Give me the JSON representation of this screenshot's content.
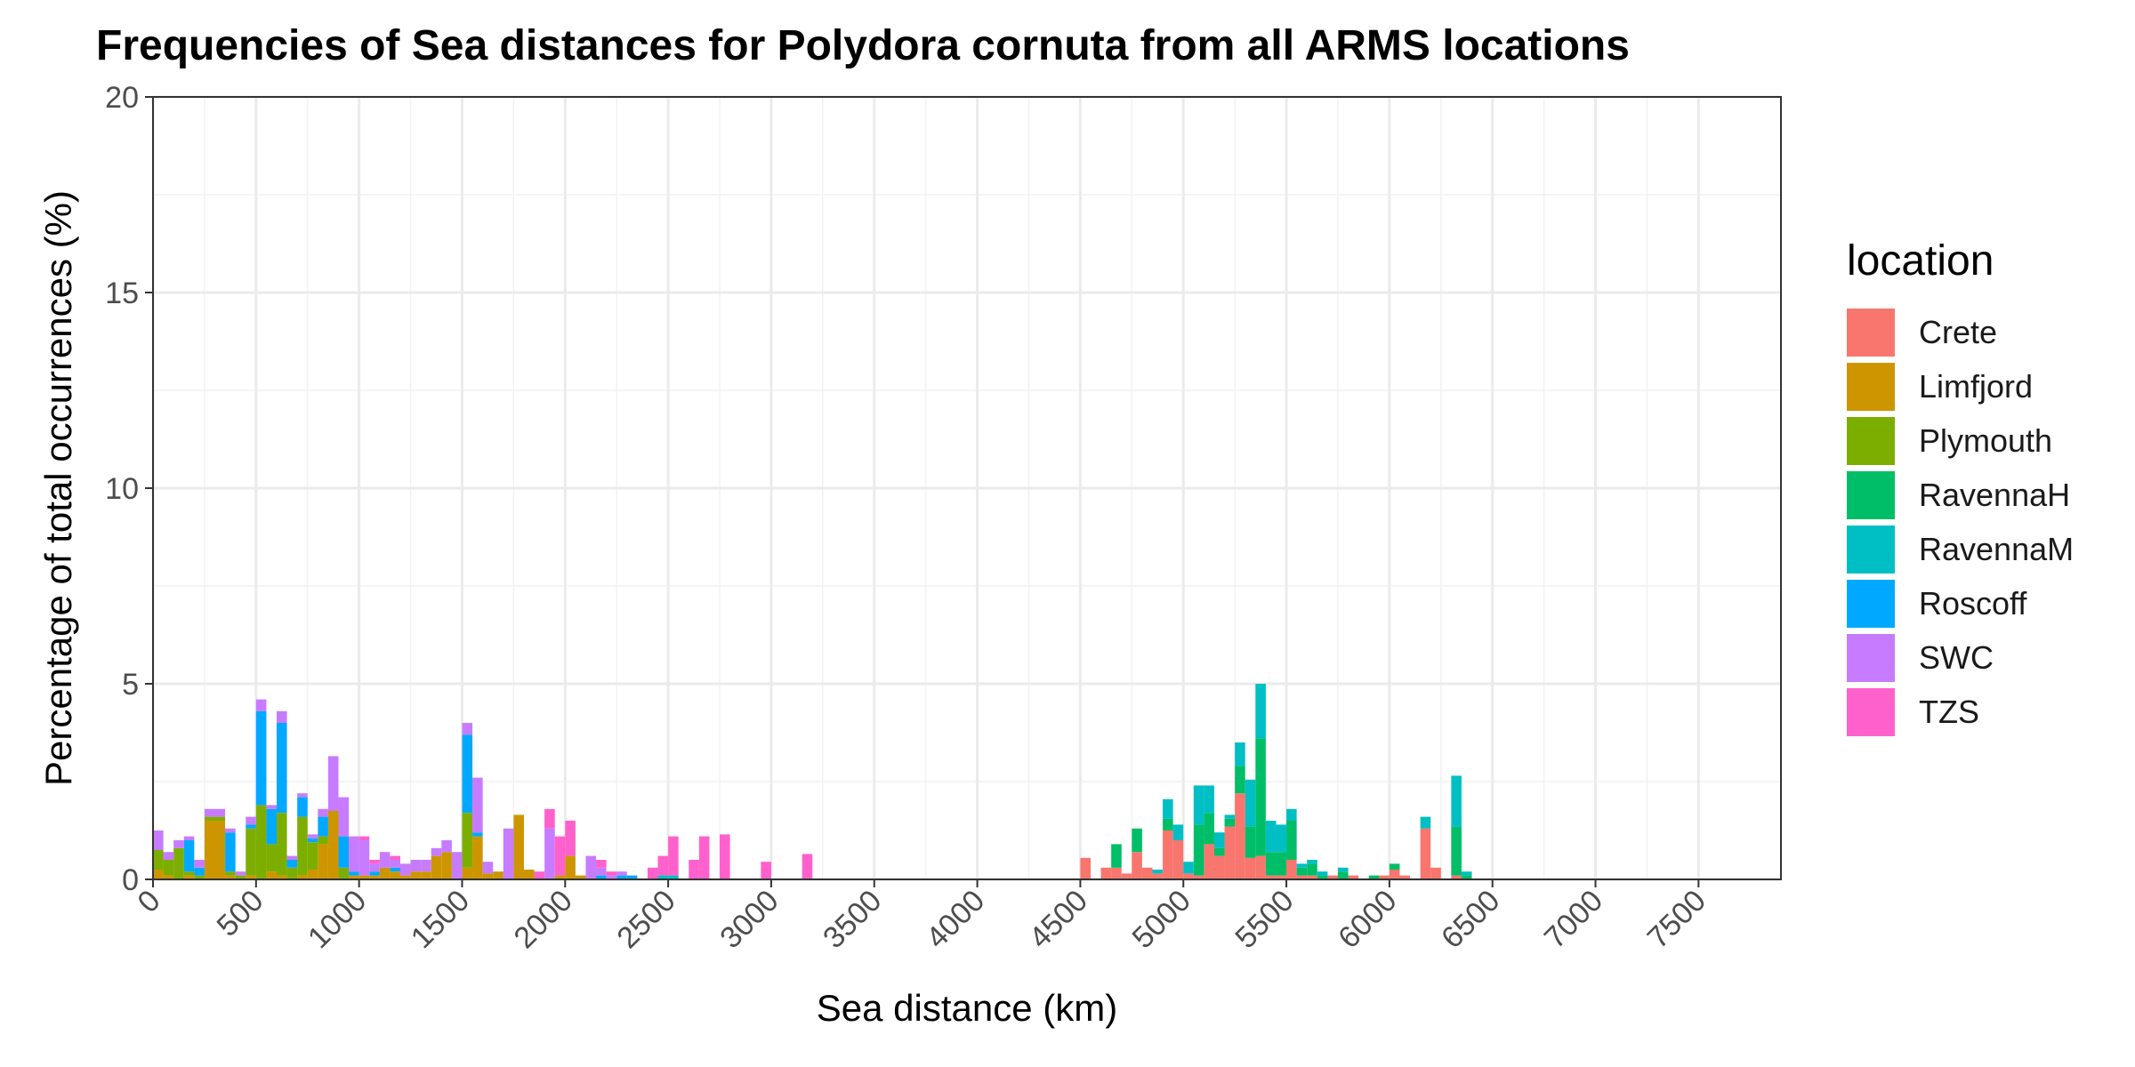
{
  "chart_data": {
    "type": "bar",
    "stacked": true,
    "title": "Frequencies of Sea distances for Polydora cornuta from all ARMS locations",
    "xlabel": "Sea distance (km)",
    "ylabel": "Percentage of total occurrences (%)",
    "xlim": [
      0,
      7900
    ],
    "ylim": [
      0,
      20
    ],
    "x_ticks": [
      0,
      500,
      1000,
      1500,
      2000,
      2500,
      3000,
      3500,
      4000,
      4500,
      5000,
      5500,
      6000,
      6500,
      7000,
      7500
    ],
    "x_tick_labels": [
      "0",
      "500",
      "1000",
      "1500",
      "2000",
      "2500",
      "3000",
      "3500",
      "4000",
      "4500",
      "5000",
      "5500",
      "6000",
      "6500",
      "7000",
      "7500"
    ],
    "y_ticks": [
      0,
      5,
      10,
      15,
      20
    ],
    "y_tick_labels": [
      "0",
      "5",
      "10",
      "15",
      "20"
    ],
    "grid": true,
    "bin_width": 50,
    "legend": {
      "title": "location",
      "position": "right"
    },
    "series": [
      {
        "name": "Crete",
        "color": "#F8766D",
        "values": [
          [
            4500,
            0.55
          ],
          [
            4600,
            0.3
          ],
          [
            4650,
            0.3
          ],
          [
            4700,
            0.15
          ],
          [
            4750,
            0.7
          ],
          [
            4800,
            0.3
          ],
          [
            4850,
            0.15
          ],
          [
            4900,
            1.25
          ],
          [
            4950,
            1.0
          ],
          [
            5000,
            0.15
          ],
          [
            5050,
            0.1
          ],
          [
            5100,
            0.9
          ],
          [
            5150,
            0.6
          ],
          [
            5200,
            1.35
          ],
          [
            5250,
            2.2
          ],
          [
            5300,
            0.55
          ],
          [
            5350,
            0.6
          ],
          [
            5400,
            0.1
          ],
          [
            5450,
            0.1
          ],
          [
            5500,
            0.5
          ],
          [
            5550,
            0.1
          ],
          [
            5600,
            0.1
          ],
          [
            5700,
            0.1
          ],
          [
            5800,
            0.1
          ],
          [
            5950,
            0.1
          ],
          [
            6000,
            0.25
          ],
          [
            6050,
            0.1
          ],
          [
            6150,
            1.3
          ],
          [
            6200,
            0.3
          ],
          [
            6300,
            0.1
          ]
        ]
      },
      {
        "name": "Limfjord",
        "color": "#CD9600",
        "values": [
          [
            0,
            0.25
          ],
          [
            50,
            0.1
          ],
          [
            150,
            0.1
          ],
          [
            250,
            1.5
          ],
          [
            300,
            1.5
          ],
          [
            350,
            0.1
          ],
          [
            450,
            0.1
          ],
          [
            550,
            0.2
          ],
          [
            600,
            0.1
          ],
          [
            700,
            0.1
          ],
          [
            750,
            0.25
          ],
          [
            800,
            0.9
          ],
          [
            850,
            1.75
          ],
          [
            950,
            0.1
          ],
          [
            1000,
            0.1
          ],
          [
            1050,
            0.1
          ],
          [
            1100,
            0.3
          ],
          [
            1150,
            0.2
          ],
          [
            1200,
            0.1
          ],
          [
            1250,
            0.2
          ],
          [
            1300,
            0.2
          ],
          [
            1350,
            0.6
          ],
          [
            1400,
            0.7
          ],
          [
            1500,
            0.3
          ],
          [
            1550,
            1.1
          ],
          [
            1600,
            0.15
          ],
          [
            1650,
            0.2
          ],
          [
            1750,
            1.65
          ],
          [
            1800,
            0.25
          ],
          [
            1950,
            0.1
          ],
          [
            2000,
            0.6
          ],
          [
            2050,
            0.1
          ]
        ]
      },
      {
        "name": "Plymouth",
        "color": "#7CAE00",
        "values": [
          [
            0,
            0.5
          ],
          [
            50,
            0.4
          ],
          [
            100,
            0.8
          ],
          [
            150,
            0.1
          ],
          [
            200,
            0.1
          ],
          [
            250,
            0.1
          ],
          [
            300,
            0.1
          ],
          [
            350,
            0.1
          ],
          [
            400,
            0.1
          ],
          [
            450,
            1.2
          ],
          [
            500,
            1.9
          ],
          [
            550,
            0.7
          ],
          [
            600,
            1.6
          ],
          [
            650,
            0.3
          ],
          [
            700,
            1.5
          ],
          [
            750,
            0.7
          ],
          [
            800,
            0.2
          ],
          [
            900,
            0.3
          ],
          [
            1500,
            1.4
          ]
        ]
      },
      {
        "name": "RavennaH",
        "color": "#00BE67",
        "values": [
          [
            4650,
            0.6
          ],
          [
            4750,
            0.6
          ],
          [
            4900,
            0.3
          ],
          [
            5050,
            1.3
          ],
          [
            5100,
            0.8
          ],
          [
            5150,
            0.2
          ],
          [
            5200,
            0.2
          ],
          [
            5250,
            0.7
          ],
          [
            5300,
            0.8
          ],
          [
            5350,
            3.0
          ],
          [
            5400,
            0.6
          ],
          [
            5450,
            0.6
          ],
          [
            5500,
            1.0
          ],
          [
            5550,
            0.2
          ],
          [
            5600,
            0.3
          ],
          [
            5650,
            0.1
          ],
          [
            5750,
            0.2
          ],
          [
            5900,
            0.1
          ],
          [
            6000,
            0.15
          ],
          [
            6300,
            1.25
          ],
          [
            6350,
            0.1
          ]
        ]
      },
      {
        "name": "RavennaM",
        "color": "#00BFC4",
        "values": [
          [
            4850,
            0.1
          ],
          [
            4900,
            0.5
          ],
          [
            4950,
            0.4
          ],
          [
            5000,
            0.3
          ],
          [
            5050,
            1.0
          ],
          [
            5100,
            0.7
          ],
          [
            5150,
            0.4
          ],
          [
            5200,
            0.1
          ],
          [
            5250,
            0.6
          ],
          [
            5300,
            1.2
          ],
          [
            5350,
            1.4
          ],
          [
            5400,
            0.8
          ],
          [
            5450,
            0.7
          ],
          [
            5500,
            0.3
          ],
          [
            5550,
            0.1
          ],
          [
            5600,
            0.1
          ],
          [
            5650,
            0.1
          ],
          [
            5750,
            0.1
          ],
          [
            6150,
            0.3
          ],
          [
            6300,
            1.3
          ],
          [
            6350,
            0.1
          ],
          [
            2450,
            0.1
          ],
          [
            2500,
            0.1
          ]
        ]
      },
      {
        "name": "Roscoff",
        "color": "#00A9FF",
        "values": [
          [
            150,
            0.8
          ],
          [
            200,
            0.2
          ],
          [
            350,
            1.0
          ],
          [
            450,
            0.1
          ],
          [
            500,
            2.4
          ],
          [
            550,
            0.9
          ],
          [
            600,
            2.3
          ],
          [
            650,
            0.2
          ],
          [
            700,
            0.5
          ],
          [
            750,
            0.1
          ],
          [
            800,
            0.5
          ],
          [
            900,
            0.8
          ],
          [
            950,
            0.1
          ],
          [
            1050,
            0.1
          ],
          [
            1150,
            0.1
          ],
          [
            1500,
            2.0
          ],
          [
            1550,
            0.1
          ],
          [
            2150,
            0.1
          ],
          [
            2250,
            0.1
          ],
          [
            2300,
            0.1
          ]
        ]
      },
      {
        "name": "SWC",
        "color": "#C77CFF",
        "values": [
          [
            0,
            0.5
          ],
          [
            50,
            0.2
          ],
          [
            100,
            0.2
          ],
          [
            150,
            0.1
          ],
          [
            200,
            0.2
          ],
          [
            250,
            0.2
          ],
          [
            300,
            0.2
          ],
          [
            350,
            0.1
          ],
          [
            400,
            0.1
          ],
          [
            450,
            0.2
          ],
          [
            500,
            0.3
          ],
          [
            550,
            0.1
          ],
          [
            600,
            0.3
          ],
          [
            650,
            0.1
          ],
          [
            700,
            0.1
          ],
          [
            750,
            0.1
          ],
          [
            800,
            0.2
          ],
          [
            850,
            1.4
          ],
          [
            900,
            1.0
          ],
          [
            950,
            0.9
          ],
          [
            1000,
            0.9
          ],
          [
            1050,
            0.2
          ],
          [
            1100,
            0.4
          ],
          [
            1150,
            0.2
          ],
          [
            1200,
            0.3
          ],
          [
            1250,
            0.3
          ],
          [
            1300,
            0.3
          ],
          [
            1350,
            0.2
          ],
          [
            1400,
            0.3
          ],
          [
            1450,
            0.7
          ],
          [
            1500,
            0.3
          ],
          [
            1550,
            1.4
          ],
          [
            1600,
            0.3
          ],
          [
            1700,
            1.3
          ],
          [
            1900,
            1.3
          ],
          [
            2100,
            0.6
          ],
          [
            2150,
            0.2
          ],
          [
            2200,
            0.1
          ],
          [
            2250,
            0.1
          ]
        ]
      },
      {
        "name": "TZS",
        "color": "#FF61CC",
        "values": [
          [
            1000,
            0.1
          ],
          [
            1050,
            0.1
          ],
          [
            1150,
            0.1
          ],
          [
            1850,
            0.2
          ],
          [
            1900,
            0.5
          ],
          [
            1950,
            1.0
          ],
          [
            2000,
            0.9
          ],
          [
            2150,
            0.2
          ],
          [
            2200,
            0.1
          ],
          [
            2400,
            0.3
          ],
          [
            2450,
            0.5
          ],
          [
            2500,
            1.0
          ],
          [
            2600,
            0.5
          ],
          [
            2650,
            1.1
          ],
          [
            2750,
            1.15
          ],
          [
            2950,
            0.45
          ],
          [
            3150,
            0.65
          ]
        ]
      }
    ]
  }
}
